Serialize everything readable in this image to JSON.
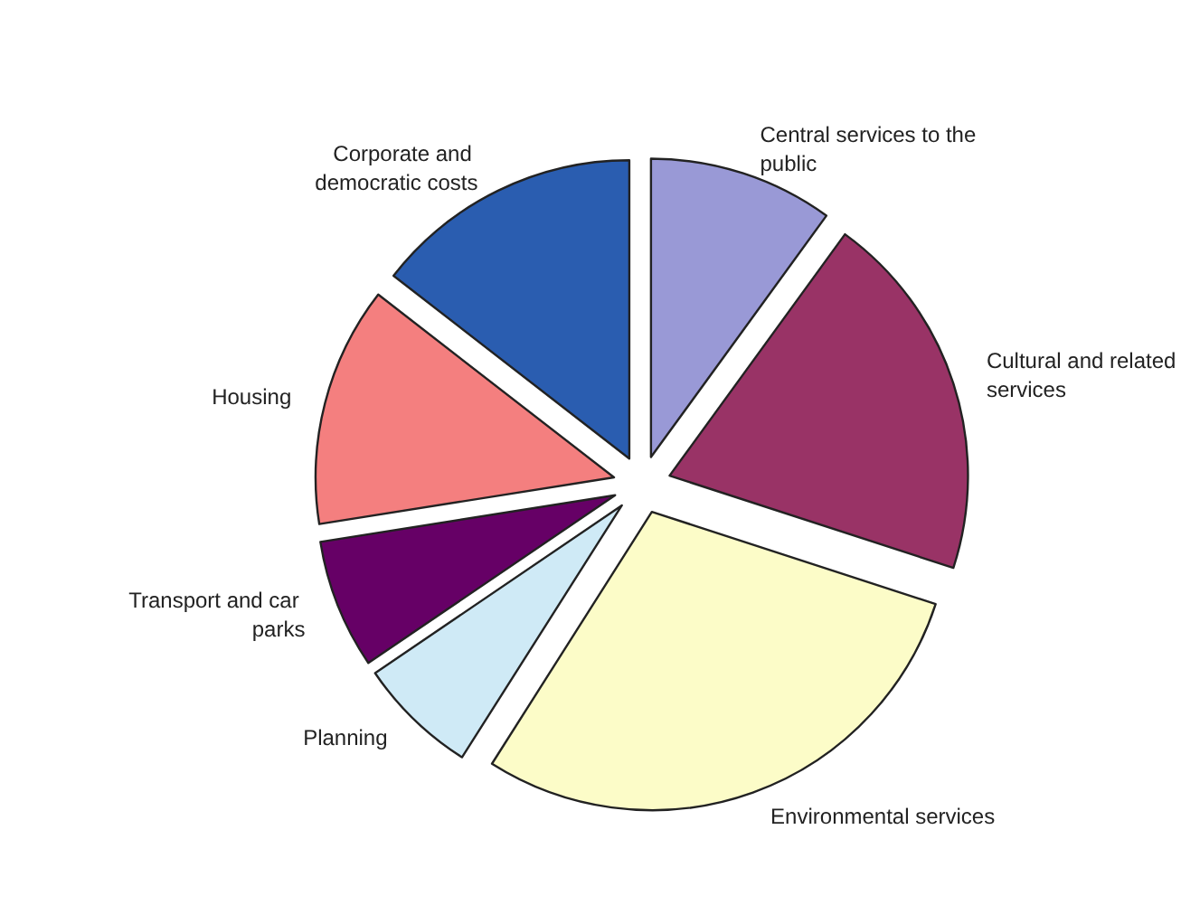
{
  "chart_data": {
    "type": "pie",
    "categories": [
      "Central services to the public",
      "Cultural and related services",
      "Environmental services",
      "Planning",
      "Transport and car parks",
      "Housing",
      "Corporate and democratic costs"
    ],
    "values": [
      10,
      20,
      29,
      6.5,
      7,
      13,
      14.5
    ],
    "colors": [
      "#9999d6",
      "#993366",
      "#fcfcc8",
      "#cfeaf6",
      "#660066",
      "#f47f7f",
      "#2a5db0"
    ]
  }
}
